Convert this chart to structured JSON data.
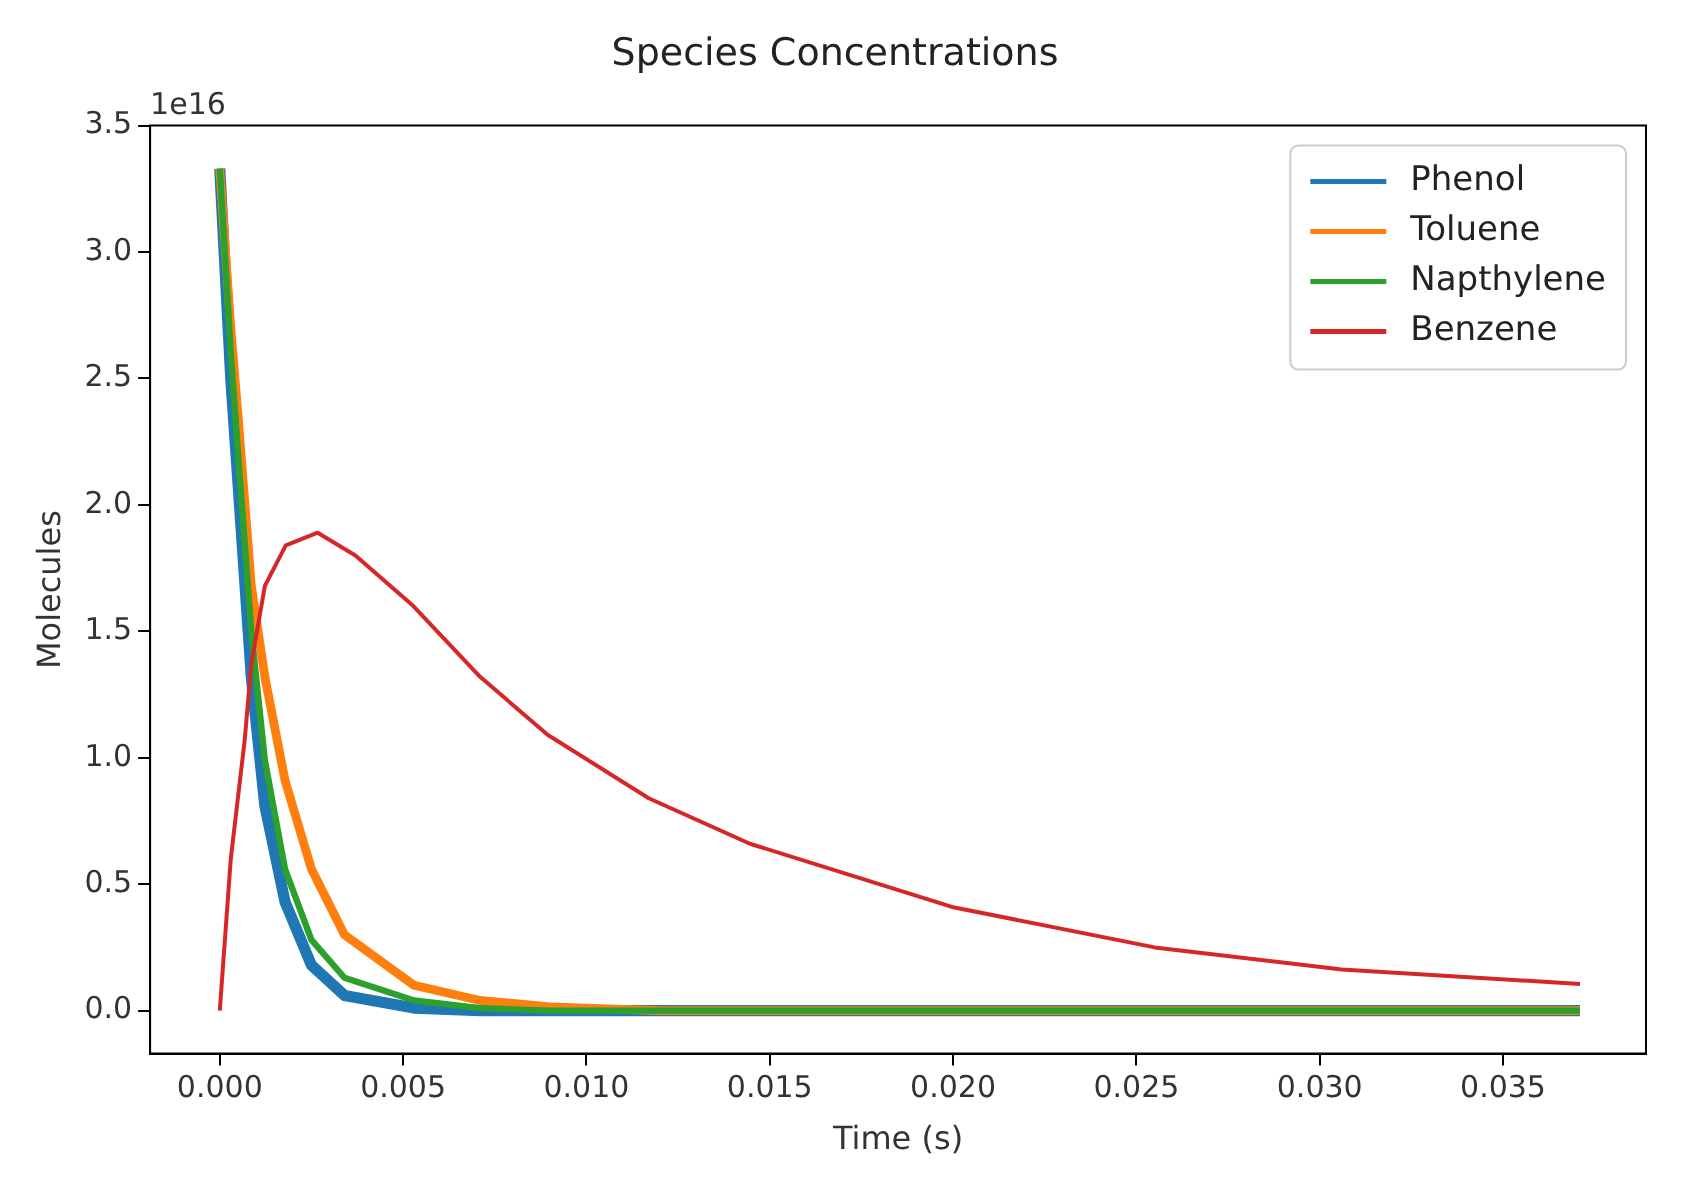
{
  "chart_data": {
    "type": "line",
    "title": "Species Concentrations",
    "xlabel": "Time (s)",
    "ylabel": "Molecules",
    "annotations": [
      "1e16"
    ],
    "xlim": [
      -0.0019,
      0.0389
    ],
    "xticks": [
      {
        "value": 0,
        "label": "0.000"
      },
      {
        "value": 0.005,
        "label": "0.005"
      },
      {
        "value": 0.01,
        "label": "0.010"
      },
      {
        "value": 0.015,
        "label": "0.015"
      },
      {
        "value": 0.02,
        "label": "0.020"
      },
      {
        "value": 0.025,
        "label": "0.025"
      },
      {
        "value": 0.03,
        "label": "0.030"
      },
      {
        "value": 0.035,
        "label": "0.035"
      }
    ],
    "ylim": [
      -0.17,
      3.5
    ],
    "yticks": [
      {
        "value": 0,
        "label": "0.0"
      },
      {
        "value": 0.5,
        "label": "0.5"
      },
      {
        "value": 1,
        "label": "1.0"
      },
      {
        "value": 1.5,
        "label": "1.5"
      },
      {
        "value": 2,
        "label": "2.0"
      },
      {
        "value": 2.5,
        "label": "2.5"
      },
      {
        "value": 3,
        "label": "3.0"
      },
      {
        "value": 3.5,
        "label": "3.5"
      }
    ],
    "grid": false,
    "legend": "top right",
    "marker": "none",
    "line_style": "solid",
    "series": [
      {
        "name": "Phenol",
        "color": "#1f77b4",
        "x": [
          0,
          0.0003,
          0.0005,
          0.00086,
          0.00123,
          0.00178,
          0.0025,
          0.0034,
          0.0053,
          0.0071,
          0.009,
          0.0371
        ],
        "values": [
          3.33,
          2.5,
          2.08,
          1.32,
          0.81,
          0.43,
          0.18,
          0.06,
          0.01,
          0,
          0,
          0
        ]
      },
      {
        "name": "Toluene",
        "color": "#ff7f0e",
        "x": [
          0,
          0.0003,
          0.0005,
          0.00086,
          0.00123,
          0.00178,
          0.0025,
          0.0034,
          0.0053,
          0.0071,
          0.009,
          0.012,
          0.0371
        ],
        "values": [
          3.33,
          2.7,
          2.35,
          1.68,
          1.32,
          0.91,
          0.56,
          0.3,
          0.1,
          0.04,
          0.015,
          0,
          0
        ]
      },
      {
        "name": "Napthylene",
        "color": "#2ca02c",
        "x": [
          0,
          0.0003,
          0.0005,
          0.00086,
          0.00123,
          0.00178,
          0.0025,
          0.0034,
          0.0053,
          0.0071,
          0.009,
          0.0371
        ],
        "values": [
          3.33,
          2.6,
          2.2,
          1.5,
          0.99,
          0.56,
          0.28,
          0.13,
          0.04,
          0.01,
          0,
          0
        ]
      },
      {
        "name": "Benzene",
        "color": "#d62728",
        "x": [
          0,
          0.0003,
          0.00068,
          0.00086,
          0.00123,
          0.0018,
          0.00267,
          0.0037,
          0.00528,
          0.0071,
          0.00895,
          0.0117,
          0.01446,
          0.01997,
          0.0255,
          0.0306,
          0.0371
        ],
        "values": [
          0,
          0.6,
          1.07,
          1.37,
          1.68,
          1.84,
          1.89,
          1.8,
          1.6,
          1.32,
          1.09,
          0.84,
          0.66,
          0.41,
          0.25,
          0.163,
          0.105
        ]
      }
    ]
  }
}
